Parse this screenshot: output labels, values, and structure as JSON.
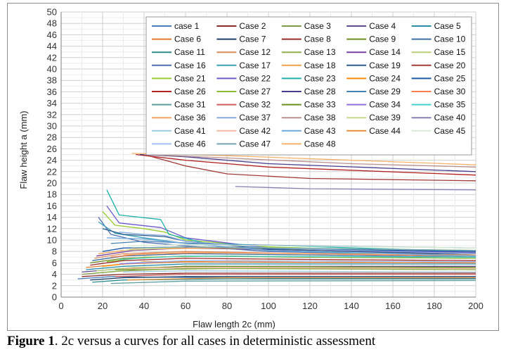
{
  "chart_data": {
    "type": "line",
    "title": "",
    "xlabel": "Flaw length 2c (mm)",
    "ylabel": "Flaw height a (mm)",
    "xlim": [
      0,
      200
    ],
    "ylim": [
      0,
      50
    ],
    "x_ticks": [
      "0",
      "20",
      "40",
      "60",
      "80",
      "100",
      "120",
      "140",
      "160",
      "180",
      "200"
    ],
    "y_ticks": [
      "0",
      "2",
      "4",
      "6",
      "8",
      "10",
      "12",
      "14",
      "16",
      "18",
      "20",
      "22",
      "24",
      "26",
      "28",
      "30",
      "32",
      "34",
      "36",
      "38",
      "40",
      "42",
      "44",
      "46",
      "48",
      "50"
    ],
    "grid": true,
    "legend_position": "top-right",
    "series": [
      {
        "name": "case 1",
        "color": "#4a7ebb",
        "points": [
          [
            8,
            3.2
          ],
          [
            25,
            3.6
          ],
          [
            40,
            3.5
          ],
          [
            80,
            3.4
          ],
          [
            120,
            3.3
          ],
          [
            200,
            3.3
          ]
        ]
      },
      {
        "name": "Case 2",
        "color": "#8b2d2d",
        "points": [
          [
            10,
            3.6
          ],
          [
            30,
            4.0
          ],
          [
            60,
            4.2
          ],
          [
            120,
            4.2
          ],
          [
            200,
            4.2
          ]
        ]
      },
      {
        "name": "Case 3",
        "color": "#7f9a48",
        "points": [
          [
            10,
            4.0
          ],
          [
            30,
            4.6
          ],
          [
            60,
            5.0
          ],
          [
            120,
            5.0
          ],
          [
            200,
            5.0
          ]
        ]
      },
      {
        "name": "Case 4",
        "color": "#5f4b8b",
        "points": [
          [
            10,
            4.4
          ],
          [
            30,
            5.0
          ],
          [
            60,
            5.4
          ],
          [
            120,
            5.4
          ],
          [
            200,
            5.4
          ]
        ]
      },
      {
        "name": "Case 5",
        "color": "#2a8ea8",
        "points": [
          [
            12,
            4.8
          ],
          [
            30,
            5.4
          ],
          [
            60,
            5.8
          ],
          [
            120,
            5.8
          ],
          [
            200,
            5.8
          ]
        ]
      },
      {
        "name": "Case 6",
        "color": "#e07b2c",
        "points": [
          [
            12,
            5.2
          ],
          [
            30,
            5.8
          ],
          [
            60,
            6.2
          ],
          [
            120,
            6.1
          ],
          [
            200,
            6.0
          ]
        ]
      },
      {
        "name": "Case 7",
        "color": "#1f3f66",
        "points": [
          [
            14,
            3.0
          ],
          [
            30,
            3.4
          ],
          [
            60,
            3.6
          ],
          [
            120,
            3.6
          ],
          [
            200,
            3.6
          ]
        ]
      },
      {
        "name": "Case 8",
        "color": "#9b2f2c",
        "points": [
          [
            14,
            5.6
          ],
          [
            30,
            6.4
          ],
          [
            60,
            6.8
          ],
          [
            120,
            6.6
          ],
          [
            200,
            6.4
          ]
        ]
      },
      {
        "name": "Case 9",
        "color": "#6b8e23",
        "points": [
          [
            14,
            6.0
          ],
          [
            30,
            6.8
          ],
          [
            60,
            7.2
          ],
          [
            120,
            7.0
          ],
          [
            200,
            6.8
          ]
        ]
      },
      {
        "name": "Case 10",
        "color": "#3c6e9f",
        "points": [
          [
            15,
            6.4
          ],
          [
            30,
            7.2
          ],
          [
            60,
            7.6
          ],
          [
            120,
            7.4
          ],
          [
            200,
            7.0
          ]
        ]
      },
      {
        "name": "Case 11",
        "color": "#2e8b8b",
        "points": [
          [
            15,
            2.6
          ],
          [
            30,
            3.0
          ],
          [
            80,
            3.2
          ],
          [
            200,
            3.2
          ]
        ]
      },
      {
        "name": "Case 12",
        "color": "#d98c5f",
        "points": [
          [
            16,
            6.8
          ],
          [
            30,
            7.6
          ],
          [
            60,
            8.0
          ],
          [
            120,
            7.6
          ],
          [
            200,
            7.2
          ]
        ]
      },
      {
        "name": "Case 13",
        "color": "#8fb04f",
        "points": [
          [
            16,
            4.2
          ],
          [
            35,
            4.8
          ],
          [
            80,
            5.0
          ],
          [
            200,
            4.8
          ]
        ]
      },
      {
        "name": "Case 14",
        "color": "#7a3e9d",
        "points": [
          [
            17,
            7.2
          ],
          [
            35,
            8.2
          ],
          [
            60,
            8.6
          ],
          [
            120,
            8.2
          ],
          [
            200,
            7.6
          ]
        ]
      },
      {
        "name": "Case 15",
        "color": "#b9cd7a",
        "points": [
          [
            17,
            4.6
          ],
          [
            35,
            5.2
          ],
          [
            80,
            5.4
          ],
          [
            200,
            5.2
          ]
        ]
      },
      {
        "name": "Case 16",
        "color": "#4f6fb0",
        "points": [
          [
            18,
            14.0
          ],
          [
            24,
            11.0
          ],
          [
            40,
            9.6
          ],
          [
            60,
            9.0
          ],
          [
            100,
            8.0
          ],
          [
            200,
            7.2
          ]
        ]
      },
      {
        "name": "Case 17",
        "color": "#3aa0b8",
        "points": [
          [
            18,
            13.2
          ],
          [
            26,
            11.2
          ],
          [
            40,
            10.4
          ],
          [
            60,
            9.4
          ],
          [
            100,
            8.2
          ],
          [
            200,
            7.0
          ]
        ]
      },
      {
        "name": "Case 18",
        "color": "#f0a04b",
        "points": [
          [
            18,
            7.6
          ],
          [
            35,
            8.4
          ],
          [
            70,
            8.6
          ],
          [
            200,
            8.0
          ]
        ]
      },
      {
        "name": "Case 19",
        "color": "#2b5d8a",
        "points": [
          [
            20,
            12.0
          ],
          [
            30,
            11.0
          ],
          [
            50,
            10.6
          ],
          [
            60,
            9.8
          ],
          [
            100,
            8.4
          ],
          [
            200,
            7.4
          ]
        ]
      },
      {
        "name": "Case 20",
        "color": "#a33b3b",
        "points": [
          [
            40,
            25.0
          ],
          [
            60,
            23.0
          ],
          [
            80,
            21.6
          ],
          [
            120,
            20.8
          ],
          [
            200,
            20.4
          ]
        ]
      },
      {
        "name": "Case 21",
        "color": "#9acd32",
        "points": [
          [
            20,
            15.0
          ],
          [
            26,
            12.6
          ],
          [
            40,
            12.0
          ],
          [
            50,
            11.4
          ],
          [
            60,
            10.0
          ],
          [
            100,
            8.8
          ],
          [
            200,
            7.6
          ]
        ]
      },
      {
        "name": "Case 22",
        "color": "#6a5acd",
        "points": [
          [
            22,
            16.0
          ],
          [
            28,
            13.0
          ],
          [
            48,
            12.2
          ],
          [
            60,
            10.4
          ],
          [
            100,
            8.6
          ],
          [
            200,
            7.8
          ]
        ]
      },
      {
        "name": "Case 23",
        "color": "#20b2aa",
        "points": [
          [
            22,
            18.8
          ],
          [
            28,
            14.4
          ],
          [
            48,
            13.6
          ],
          [
            52,
            11.0
          ],
          [
            70,
            9.4
          ],
          [
            200,
            8.0
          ]
        ]
      },
      {
        "name": "Case 24",
        "color": "#ff8c00",
        "points": [
          [
            20,
            5.4
          ],
          [
            40,
            6.2
          ],
          [
            80,
            6.4
          ],
          [
            200,
            6.2
          ]
        ]
      },
      {
        "name": "Case 25",
        "color": "#1e5aa8",
        "points": [
          [
            20,
            8.0
          ],
          [
            30,
            8.6
          ],
          [
            60,
            8.8
          ],
          [
            120,
            8.4
          ],
          [
            200,
            8.0
          ]
        ]
      },
      {
        "name": "Case 26",
        "color": "#b22222",
        "points": [
          [
            36,
            25.0
          ],
          [
            60,
            24.0
          ],
          [
            100,
            22.8
          ],
          [
            200,
            21.4
          ]
        ]
      },
      {
        "name": "Case 27",
        "color": "#8fbc3f",
        "points": [
          [
            22,
            6.2
          ],
          [
            40,
            7.0
          ],
          [
            80,
            7.2
          ],
          [
            200,
            6.8
          ]
        ]
      },
      {
        "name": "Case 28",
        "color": "#483d8b",
        "points": [
          [
            38,
            25.0
          ],
          [
            60,
            24.6
          ],
          [
            100,
            23.4
          ],
          [
            200,
            22.0
          ]
        ]
      },
      {
        "name": "Case 29",
        "color": "#4682b4",
        "points": [
          [
            24,
            9.4
          ],
          [
            40,
            9.8
          ],
          [
            80,
            9.2
          ],
          [
            200,
            8.6
          ]
        ]
      },
      {
        "name": "Case 30",
        "color": "#ff7f50",
        "points": [
          [
            24,
            7.0
          ],
          [
            40,
            7.6
          ],
          [
            80,
            7.8
          ],
          [
            200,
            7.2
          ]
        ]
      },
      {
        "name": "Case 31",
        "color": "#5f9ea0",
        "points": [
          [
            24,
            2.4
          ],
          [
            60,
            2.8
          ],
          [
            200,
            2.9
          ]
        ]
      },
      {
        "name": "Case 32",
        "color": "#cd5c5c",
        "points": [
          [
            26,
            3.6
          ],
          [
            60,
            4.0
          ],
          [
            200,
            4.0
          ]
        ]
      },
      {
        "name": "Case 33",
        "color": "#6b8e23",
        "points": [
          [
            26,
            4.8
          ],
          [
            60,
            5.4
          ],
          [
            200,
            5.2
          ]
        ]
      },
      {
        "name": "Case 34",
        "color": "#9370db",
        "points": [
          [
            28,
            5.8
          ],
          [
            60,
            6.4
          ],
          [
            200,
            6.2
          ]
        ]
      },
      {
        "name": "Case 35",
        "color": "#48d1cc",
        "points": [
          [
            28,
            6.6
          ],
          [
            60,
            7.2
          ],
          [
            200,
            7.0
          ]
        ]
      },
      {
        "name": "Case 36",
        "color": "#f4a460",
        "points": [
          [
            30,
            7.4
          ],
          [
            60,
            7.8
          ],
          [
            200,
            7.4
          ]
        ]
      },
      {
        "name": "Case 37",
        "color": "#87aadd",
        "points": [
          [
            28,
            11.4
          ],
          [
            40,
            11.0
          ],
          [
            50,
            10.8
          ],
          [
            60,
            9.8
          ],
          [
            100,
            8.6
          ],
          [
            200,
            7.6
          ]
        ]
      },
      {
        "name": "Case 38",
        "color": "#bc8f8f",
        "points": [
          [
            40,
            25.0
          ],
          [
            80,
            24.4
          ],
          [
            140,
            23.4
          ],
          [
            200,
            22.8
          ]
        ]
      },
      {
        "name": "Case 39",
        "color": "#c5d98b",
        "points": [
          [
            30,
            8.2
          ],
          [
            60,
            8.8
          ],
          [
            200,
            8.2
          ]
        ]
      },
      {
        "name": "Case 40",
        "color": "#8a7fb5",
        "points": [
          [
            84,
            19.4
          ],
          [
            120,
            19.0
          ],
          [
            200,
            18.8
          ]
        ]
      },
      {
        "name": "Case 41",
        "color": "#9ecae1",
        "points": [
          [
            30,
            4.4
          ],
          [
            60,
            4.6
          ],
          [
            200,
            4.4
          ]
        ]
      },
      {
        "name": "Case 42",
        "color": "#f2b8a0",
        "points": [
          [
            30,
            5.0
          ],
          [
            60,
            5.2
          ],
          [
            200,
            5.0
          ]
        ]
      },
      {
        "name": "Case 43",
        "color": "#6fa8dc",
        "points": [
          [
            22,
            10.4
          ],
          [
            40,
            10.2
          ],
          [
            60,
            9.4
          ],
          [
            100,
            8.2
          ],
          [
            200,
            7.2
          ]
        ]
      },
      {
        "name": "Case 44",
        "color": "#e69138",
        "points": [
          [
            32,
            3.0
          ],
          [
            80,
            3.4
          ],
          [
            200,
            3.4
          ]
        ]
      },
      {
        "name": "Case 45",
        "color": "#d9ead3",
        "points": [
          [
            32,
            9.0
          ],
          [
            60,
            9.2
          ],
          [
            200,
            8.6
          ]
        ]
      },
      {
        "name": "Case 46",
        "color": "#a4c2f4",
        "points": [
          [
            32,
            6.0
          ],
          [
            60,
            6.4
          ],
          [
            200,
            6.2
          ]
        ]
      },
      {
        "name": "Case 47",
        "color": "#76a5af",
        "points": [
          [
            34,
            8.6
          ],
          [
            60,
            8.8
          ],
          [
            200,
            8.2
          ]
        ]
      },
      {
        "name": "Case 48",
        "color": "#f6b26b",
        "points": [
          [
            34,
            25.2
          ],
          [
            80,
            24.8
          ],
          [
            200,
            23.2
          ]
        ]
      }
    ]
  },
  "caption": {
    "lead": "Figure 1",
    "text": ".  2c versus a curves for all cases in deterministic assessment"
  }
}
